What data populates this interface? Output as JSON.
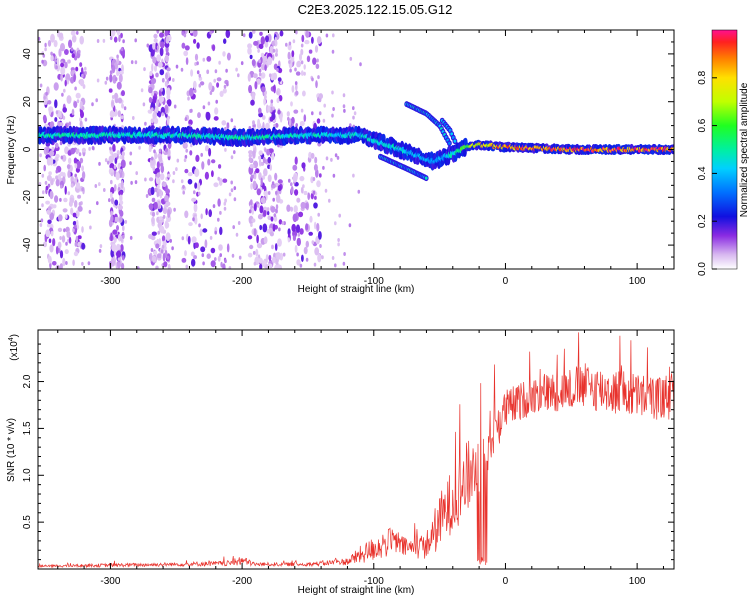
{
  "title": "C2E3.2025.122.15.05.G12",
  "chart_data": [
    {
      "type": "heatmap",
      "title": "C2E3.2025.122.15.05.G12",
      "xlabel": "Height of straight line (km)",
      "ylabel": "Frequency (Hz)",
      "xlim": [
        -355,
        128
      ],
      "ylim": [
        -50,
        50
      ],
      "x_ticks": [
        -300,
        -200,
        -100,
        0,
        100
      ],
      "x_tick_labels": [
        "-300",
        "-200",
        "-100",
        "0",
        "100"
      ],
      "y_ticks": [
        -40,
        -20,
        0,
        20,
        40
      ],
      "y_tick_labels": [
        "-40",
        "-20",
        "0",
        "20",
        "40"
      ],
      "colorbar": {
        "label": "Normalized spectral amplitude",
        "range": [
          0,
          1
        ],
        "ticks": [
          0.0,
          0.2,
          0.4,
          0.6,
          0.8
        ],
        "tick_labels": [
          "0.0",
          "0.2",
          "0.4",
          "0.6",
          "0.8"
        ]
      },
      "ridge": {
        "description_points_height_km": [
          -345,
          -300,
          -250,
          -200,
          -150,
          -110,
          -90,
          -70,
          -55,
          -45,
          -30,
          -20,
          0,
          50,
          100,
          125
        ],
        "frequency_hz": [
          6,
          6,
          6,
          5,
          6,
          6,
          2,
          -2,
          -5,
          -3,
          1,
          2,
          1,
          0,
          0,
          0
        ],
        "amplitude": [
          0.5,
          0.45,
          0.45,
          0.5,
          0.45,
          0.45,
          0.45,
          0.4,
          0.35,
          0.4,
          0.6,
          0.75,
          0.85,
          0.9,
          0.9,
          0.9
        ]
      },
      "branches": [
        {
          "height_km": [
            -75,
            -60,
            -50,
            -42
          ],
          "frequency_hz": [
            19,
            15,
            10,
            2
          ]
        },
        {
          "height_km": [
            -48,
            -42,
            -38
          ],
          "frequency_hz": [
            12,
            8,
            3
          ]
        },
        {
          "height_km": [
            -95,
            -75,
            -60
          ],
          "frequency_hz": [
            -3,
            -8,
            -12
          ]
        }
      ]
    },
    {
      "type": "line",
      "xlabel": "Height of straight line (km)",
      "ylabel": "SNR (10 * v/v)",
      "y_scale_label": "(x10",
      "y_scale_exponent": "4",
      "xlim": [
        -355,
        128
      ],
      "ylim": [
        0,
        2.55
      ],
      "x_ticks": [
        -300,
        -200,
        -100,
        0,
        100
      ],
      "x_tick_labels": [
        "-300",
        "-200",
        "-100",
        "0",
        "100"
      ],
      "y_ticks": [
        0.5,
        1.0,
        1.5,
        2.0
      ],
      "y_tick_labels": [
        "0.5",
        "1.0",
        "1.5",
        "2.0"
      ],
      "series": [
        {
          "name": "SNR",
          "color": "#e8322c",
          "envelope_x_km": [
            -355,
            -300,
            -250,
            -210,
            -200,
            -190,
            -150,
            -120,
            -110,
            -95,
            -85,
            -75,
            -60,
            -50,
            -40,
            -30,
            -20,
            -10,
            0,
            20,
            40,
            60,
            80,
            100,
            128
          ],
          "envelope_mean": [
            0.03,
            0.04,
            0.05,
            0.06,
            0.09,
            0.05,
            0.05,
            0.08,
            0.15,
            0.25,
            0.3,
            0.22,
            0.25,
            0.5,
            0.75,
            0.95,
            1.15,
            1.45,
            1.7,
            1.85,
            1.9,
            1.95,
            1.9,
            1.85,
            1.8
          ],
          "envelope_spread": [
            0.01,
            0.02,
            0.02,
            0.03,
            0.05,
            0.02,
            0.02,
            0.04,
            0.1,
            0.15,
            0.15,
            0.1,
            0.15,
            0.3,
            0.35,
            0.4,
            0.35,
            0.3,
            0.22,
            0.2,
            0.22,
            0.25,
            0.25,
            0.25,
            0.22
          ]
        }
      ]
    }
  ]
}
